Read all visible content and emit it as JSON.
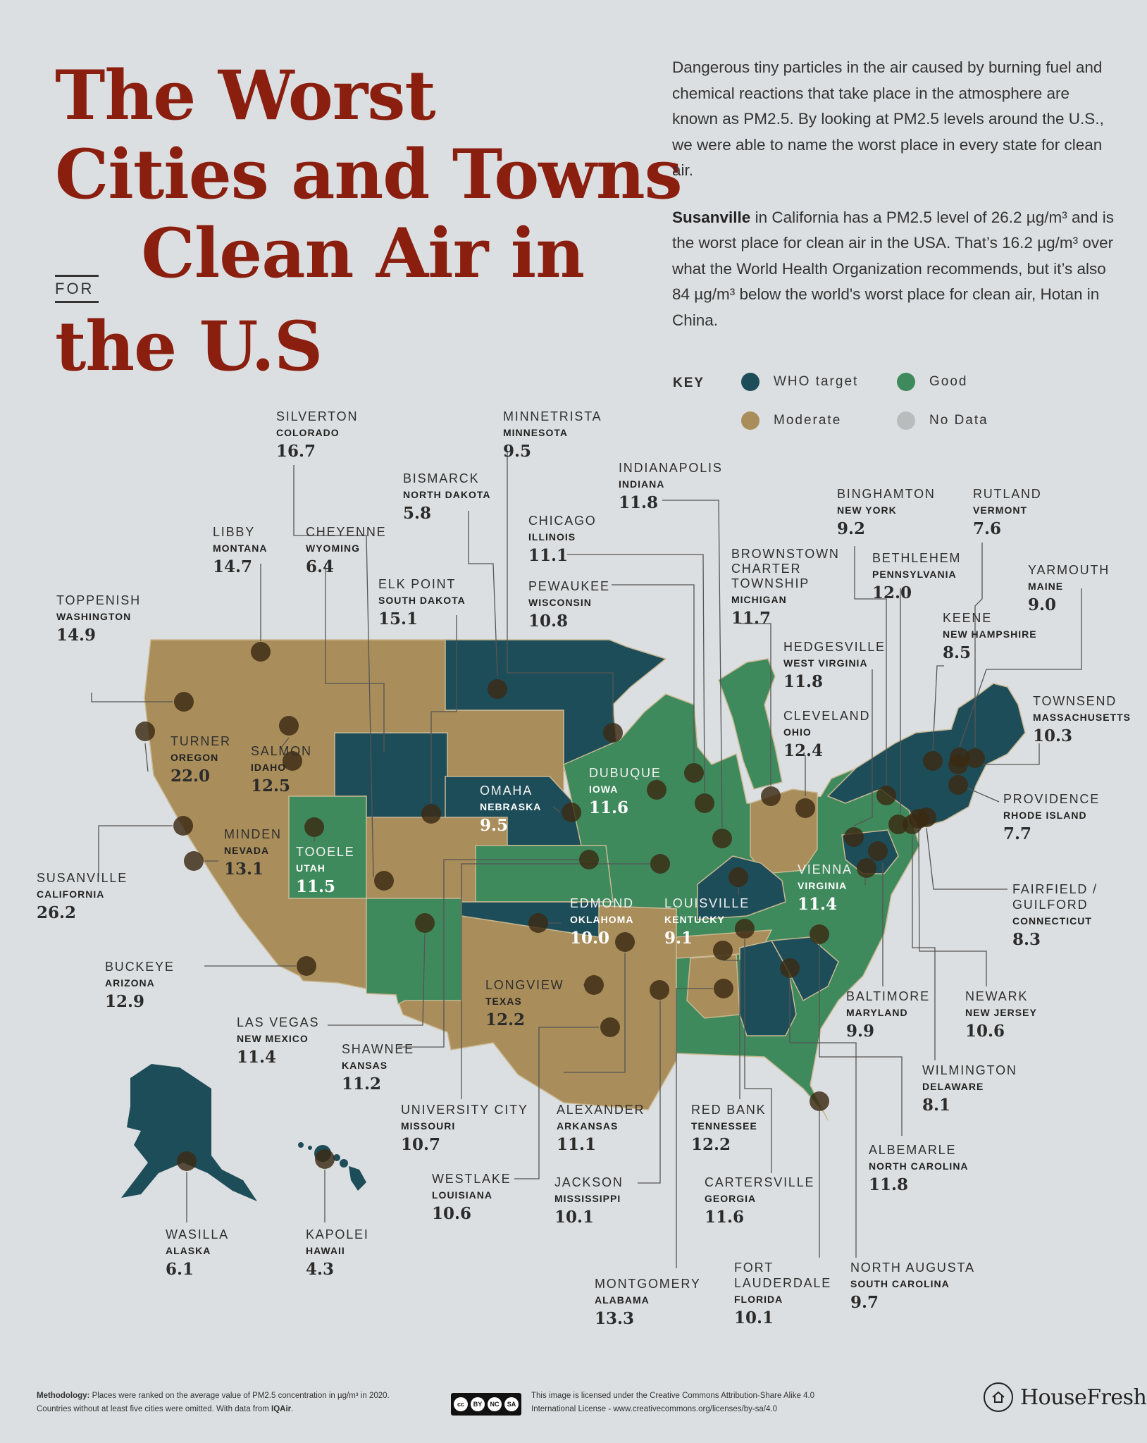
{
  "title": {
    "line1": "The Worst",
    "line2": "Cities and Towns",
    "for": "FOR",
    "line3": "Clean Air in",
    "line4": "the U.S"
  },
  "intro": {
    "p1": "Dangerous tiny particles in the air caused by burning fuel and chemical reactions that take place in the atmosphere are known as PM2.5. By looking at PM2.5 levels around the U.S., we were able to name the worst place in every state for clean air.",
    "p2_bold": "Susanville",
    "p2": " in California has a PM2.5 level of 26.2 µg/m³ and is the worst place for clean air in the USA. That’s 16.2 µg/m³ over what the World Health Organization recommends, but it’s also 84 µg/m³ below the world's worst place for clean air, Hotan in China."
  },
  "key": {
    "label": "KEY",
    "items": [
      {
        "label": "WHO target",
        "color": "#1e4d5a"
      },
      {
        "label": "Good",
        "color": "#3f8a5c"
      },
      {
        "label": "Moderate",
        "color": "#a98d5a"
      },
      {
        "label": "No Data",
        "color": "#b9bcbd"
      }
    ]
  },
  "colors": {
    "who": "#1e4d5a",
    "good": "#3f8a5c",
    "moderate": "#a98d5a",
    "nodata": "#b9bcbd",
    "title": "#8a1f10",
    "dot": "#3a2a12"
  },
  "cities": [
    {
      "city": "TOPPENISH",
      "state": "WASHINGTON",
      "value": "14.9"
    },
    {
      "city": "LIBBY",
      "state": "MONTANA",
      "value": "14.7"
    },
    {
      "city": "SILVERTON",
      "state": "COLORADO",
      "value": "16.7"
    },
    {
      "city": "CHEYENNE",
      "state": "WYOMING",
      "value": "6.4"
    },
    {
      "city": "ELK POINT",
      "state": "SOUTH DAKOTA",
      "value": "15.1"
    },
    {
      "city": "BISMARCK",
      "state": "NORTH DAKOTA",
      "value": "5.8"
    },
    {
      "city": "MINNETRISTA",
      "state": "MINNESOTA",
      "value": "9.5"
    },
    {
      "city": "INDIANAPOLIS",
      "state": "INDIANA",
      "value": "11.8"
    },
    {
      "city": "CHICAGO",
      "state": "ILLINOIS",
      "value": "11.1"
    },
    {
      "city": "PEWAUKEE",
      "state": "WISCONSIN",
      "value": "10.8"
    },
    {
      "city": "BROWNSTOWN CHARTER TOWNSHIP",
      "city_l1": "BROWNSTOWN",
      "city_l2": "CHARTER",
      "city_l3": "TOWNSHIP",
      "state": "MICHIGAN",
      "value": "11.7"
    },
    {
      "city": "BINGHAMTON",
      "state": "NEW YORK",
      "value": "9.2"
    },
    {
      "city": "RUTLAND",
      "state": "VERMONT",
      "value": "7.6"
    },
    {
      "city": "BETHLEHEM",
      "state": "PENNSYLVANIA",
      "value": "12.0"
    },
    {
      "city": "YARMOUTH",
      "state": "MAINE",
      "value": "9.0"
    },
    {
      "city": "KEENE",
      "state": "NEW HAMPSHIRE",
      "value": "8.5"
    },
    {
      "city": "HEDGESVILLE",
      "state": "WEST VIRGINIA",
      "value": "11.8"
    },
    {
      "city": "CLEVELAND",
      "state": "OHIO",
      "value": "12.4"
    },
    {
      "city": "TOWNSEND",
      "state": "MASSACHUSETTS",
      "value": "10.3"
    },
    {
      "city": "PROVIDENCE",
      "state": "RHODE ISLAND",
      "value": "7.7"
    },
    {
      "city": "TURNER",
      "state": "OREGON",
      "value": "22.0"
    },
    {
      "city": "SALMON",
      "state": "IDAHO",
      "value": "12.5"
    },
    {
      "city": "OMAHA",
      "state": "NEBRASKA",
      "value": "9.5"
    },
    {
      "city": "DUBUQUE",
      "state": "IOWA",
      "value": "11.6"
    },
    {
      "city": "MINDEN",
      "state": "NEVADA",
      "value": "13.1"
    },
    {
      "city": "TOOELE",
      "state": "UTAH",
      "value": "11.5"
    },
    {
      "city": "SUSANVILLE",
      "state": "CALIFORNIA",
      "value": "26.2"
    },
    {
      "city": "VIENNA",
      "state": "VIRGINIA",
      "value": "11.4"
    },
    {
      "city": "FAIRFIELD / GUILFORD",
      "city_l1": "FAIRFIELD /",
      "city_l2": "GUILFORD",
      "state": "CONNECTICUT",
      "value": "8.3"
    },
    {
      "city": "EDMOND",
      "state": "OKLAHOMA",
      "value": "10.0"
    },
    {
      "city": "LOUISVILLE",
      "state": "KENTUCKY",
      "value": "9.1"
    },
    {
      "city": "BUCKEYE",
      "state": "ARIZONA",
      "value": "12.9"
    },
    {
      "city": "LONGVIEW",
      "state": "TEXAS",
      "value": "12.2"
    },
    {
      "city": "LAS VEGAS",
      "state": "NEW MEXICO",
      "value": "11.4"
    },
    {
      "city": "SHAWNEE",
      "state": "KANSAS",
      "value": "11.2"
    },
    {
      "city": "BALTIMORE",
      "state": "MARYLAND",
      "value": "9.9"
    },
    {
      "city": "NEWARK",
      "state": "NEW JERSEY",
      "value": "10.6"
    },
    {
      "city": "WILMINGTON",
      "state": "DELAWARE",
      "value": "8.1"
    },
    {
      "city": "UNIVERSITY CITY",
      "state": "MISSOURI",
      "value": "10.7"
    },
    {
      "city": "ALEXANDER",
      "state": "ARKANSAS",
      "value": "11.1"
    },
    {
      "city": "RED BANK",
      "state": "TENNESSEE",
      "value": "12.2"
    },
    {
      "city": "ALBEMARLE",
      "state": "NORTH CAROLINA",
      "value": "11.8"
    },
    {
      "city": "WESTLAKE",
      "state": "LOUISIANA",
      "value": "10.6"
    },
    {
      "city": "JACKSON",
      "state": "MISSISSIPPI",
      "value": "10.1"
    },
    {
      "city": "CARTERSVILLE",
      "state": "GEORGIA",
      "value": "11.6"
    },
    {
      "city": "WASILLA",
      "state": "ALASKA",
      "value": "6.1"
    },
    {
      "city": "KAPOLEI",
      "state": "HAWAII",
      "value": "4.3"
    },
    {
      "city": "MONTGOMERY",
      "state": "ALABAMA",
      "value": "13.3"
    },
    {
      "city": "FORT LAUDERDALE",
      "city_l1": "FORT",
      "city_l2": "LAUDERDALE",
      "state": "FLORIDA",
      "value": "10.1"
    },
    {
      "city": "NORTH AUGUSTA",
      "state": "SOUTH CAROLINA",
      "value": "9.7"
    }
  ],
  "footer": {
    "method_bold": "Methodology:",
    "method_l1": " Places were ranked on the average value of PM2.5 concentration in µg/m³ in 2020.",
    "method_l2a": "Countries without at least five cities were omitted. With data from ",
    "method_l2b": "IQAir",
    "method_l2c": ".",
    "license_l1": "This image is licensed under the Creative Commons Attribution-Share Alike 4.0",
    "license_l2": "International License - www.creativecommons.org/licenses/by-sa/4.0",
    "cc_by": "BY",
    "cc_nc": "NC",
    "cc_sa": "SA",
    "brand": "HouseFresh"
  }
}
